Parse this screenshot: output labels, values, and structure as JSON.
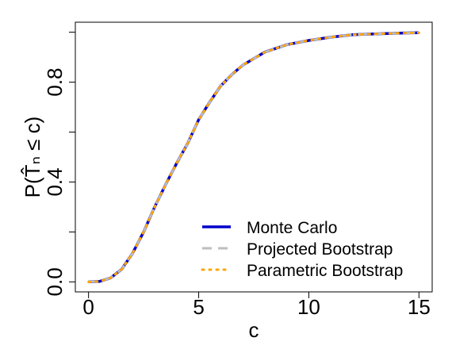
{
  "chart_data": {
    "type": "line",
    "xlabel": "c",
    "ylabel": "P(T̂ₙ ≤ c)",
    "x": [
      0,
      0.5,
      1,
      1.5,
      2,
      2.5,
      3,
      3.5,
      4,
      4.5,
      5,
      5.5,
      6,
      6.5,
      7,
      8,
      9,
      10,
      11,
      12,
      13,
      14,
      15
    ],
    "series": [
      {
        "name": "Monte Carlo",
        "color": "#0000cd",
        "dash": "solid",
        "values": [
          0,
          0.002,
          0.016,
          0.05,
          0.115,
          0.2,
          0.3,
          0.39,
          0.475,
          0.555,
          0.65,
          0.72,
          0.785,
          0.83,
          0.868,
          0.92,
          0.95,
          0.967,
          0.98,
          0.99,
          0.993,
          0.996,
          0.998
        ]
      },
      {
        "name": "Projected Bootstrap",
        "color": "#bebebe",
        "dash": "dashed",
        "values": [
          0,
          0.002,
          0.016,
          0.05,
          0.115,
          0.2,
          0.3,
          0.39,
          0.475,
          0.555,
          0.65,
          0.72,
          0.785,
          0.83,
          0.868,
          0.92,
          0.95,
          0.967,
          0.98,
          0.99,
          0.993,
          0.996,
          0.998
        ]
      },
      {
        "name": "Parametric Bootstrap",
        "color": "#ffa500",
        "dash": "dotted",
        "values": [
          0,
          0.002,
          0.016,
          0.05,
          0.115,
          0.2,
          0.3,
          0.39,
          0.475,
          0.555,
          0.65,
          0.72,
          0.785,
          0.83,
          0.868,
          0.92,
          0.95,
          0.967,
          0.98,
          0.99,
          0.993,
          0.996,
          0.998
        ]
      }
    ],
    "xlim": [
      -0.6,
      15.6
    ],
    "ylim": [
      -0.04,
      1.04
    ],
    "xticks": [
      0,
      5,
      10,
      15
    ],
    "yticks": [
      {
        "value": 0,
        "label": "0.0"
      },
      {
        "value": 0.4,
        "label": "0.4"
      },
      {
        "value": 0.8,
        "label": "0.8"
      }
    ],
    "yminorticks": [
      0.2,
      0.6,
      1
    ],
    "legend": "bottomright"
  }
}
